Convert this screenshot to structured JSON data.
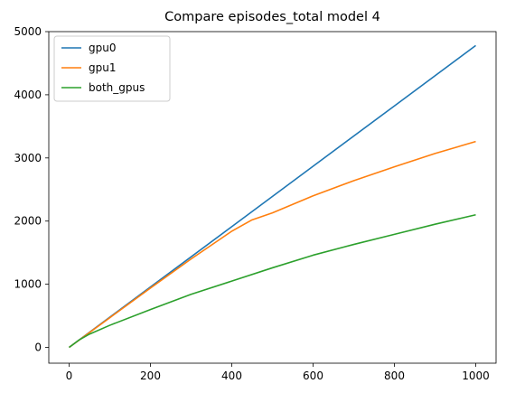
{
  "chart_data": {
    "type": "line",
    "title": "Compare episodes_total model 4",
    "xlabel": "",
    "ylabel": "",
    "xlim": [
      -50,
      1050
    ],
    "ylim": [
      -250,
      5000
    ],
    "xticks": [
      0,
      200,
      400,
      600,
      800,
      1000
    ],
    "yticks": [
      0,
      1000,
      2000,
      3000,
      4000,
      5000
    ],
    "grid": false,
    "legend_position": "top-left",
    "series": [
      {
        "name": "gpu0",
        "color": "#1f77b4",
        "points": [
          [
            0,
            0
          ],
          [
            200,
            956
          ],
          [
            400,
            1912
          ],
          [
            600,
            2868
          ],
          [
            800,
            3824
          ],
          [
            1000,
            4780
          ]
        ]
      },
      {
        "name": "gpu1",
        "color": "#ff7f0e",
        "points": [
          [
            0,
            0
          ],
          [
            100,
            470
          ],
          [
            200,
            940
          ],
          [
            300,
            1400
          ],
          [
            400,
            1840
          ],
          [
            450,
            2020
          ],
          [
            500,
            2130
          ],
          [
            600,
            2400
          ],
          [
            700,
            2640
          ],
          [
            800,
            2860
          ],
          [
            900,
            3070
          ],
          [
            1000,
            3260
          ]
        ]
      },
      {
        "name": "both_gpus",
        "color": "#2ca02c",
        "points": [
          [
            0,
            0
          ],
          [
            25,
            120
          ],
          [
            50,
            210
          ],
          [
            100,
            350
          ],
          [
            200,
            600
          ],
          [
            300,
            840
          ],
          [
            400,
            1050
          ],
          [
            500,
            1260
          ],
          [
            600,
            1460
          ],
          [
            700,
            1630
          ],
          [
            800,
            1790
          ],
          [
            900,
            1950
          ],
          [
            1000,
            2100
          ]
        ]
      }
    ]
  }
}
